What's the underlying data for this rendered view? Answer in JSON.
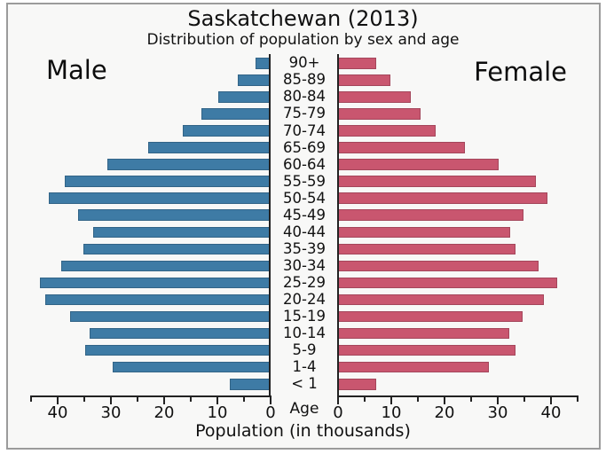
{
  "window": {
    "outer_background": "#ffffff",
    "panel_background": "#f8f8f7",
    "border_color": "#9b9b9b",
    "text_color": "#111111",
    "axis_color": "#222222"
  },
  "chart_data": {
    "type": "bar",
    "variant": "population-pyramid",
    "title": "Saskatchewan (2013)",
    "subtitle": "Distribution of population by sex and age",
    "xlabel": "Population (in thousands)",
    "age_axis_label": "Age",
    "legend_left": "Male",
    "legend_right": "Female",
    "grid": false,
    "xlim": [
      0,
      45
    ],
    "x_major_ticks": [
      0,
      10,
      20,
      30,
      40
    ],
    "x_minor_ticks": [
      5,
      15,
      25,
      35,
      45
    ],
    "categories_top_to_bottom": [
      "90+",
      "85-89",
      "80-84",
      "75-79",
      "70-74",
      "65-69",
      "60-64",
      "55-59",
      "50-54",
      "45-49",
      "40-44",
      "35-39",
      "30-34",
      "25-29",
      "20-24",
      "15-19",
      "10-14",
      "5-9",
      "1-4",
      "< 1"
    ],
    "series": [
      {
        "name": "Male",
        "side": "left",
        "color": "#3e7ba5",
        "values": [
          2.8,
          6.2,
          9.8,
          13.0,
          16.5,
          23.0,
          30.6,
          38.6,
          41.7,
          36.1,
          33.3,
          35.2,
          39.4,
          43.3,
          42.4,
          37.6,
          34.0,
          34.8,
          29.7,
          7.6
        ]
      },
      {
        "name": "Female",
        "side": "right",
        "color": "#c9566f",
        "values": [
          7.1,
          9.9,
          13.6,
          15.5,
          18.3,
          23.8,
          30.1,
          37.2,
          39.3,
          34.8,
          32.3,
          33.4,
          37.6,
          41.2,
          38.6,
          34.7,
          32.2,
          33.4,
          28.4,
          7.2
        ]
      }
    ]
  }
}
